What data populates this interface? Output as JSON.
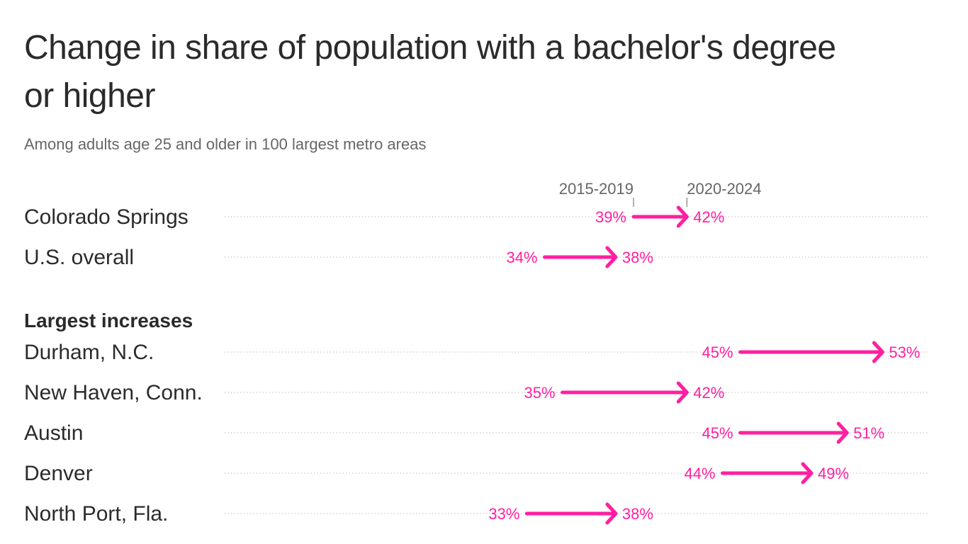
{
  "title": "Change in share of population with a bachelor's degree or higher",
  "subtitle": "Among adults age 25 and older in 100 largest metro areas",
  "colors": {
    "accent": "#ff1fa0",
    "text": "#2b2b2b",
    "muted": "#666666",
    "grid": "#cccccc"
  },
  "chart_data": {
    "type": "arrow-range",
    "legend": {
      "start_label": "2015-2019",
      "end_label": "2020-2024"
    },
    "section_heading": "Largest increases",
    "units": "%",
    "rows": [
      {
        "label": "Colorado Springs",
        "start": 39,
        "end": 42,
        "start_text": "39%",
        "end_text": "42%",
        "section": "top"
      },
      {
        "label": "U.S. overall",
        "start": 34,
        "end": 38,
        "start_text": "34%",
        "end_text": "38%",
        "section": "top"
      },
      {
        "label": "Durham, N.C.",
        "start": 45,
        "end": 53,
        "start_text": "45%",
        "end_text": "53%",
        "section": "largest"
      },
      {
        "label": "New Haven, Conn.",
        "start": 35,
        "end": 42,
        "start_text": "35%",
        "end_text": "42%",
        "section": "largest"
      },
      {
        "label": "Austin",
        "start": 45,
        "end": 51,
        "start_text": "45%",
        "end_text": "51%",
        "section": "largest"
      },
      {
        "label": "Denver",
        "start": 44,
        "end": 49,
        "start_text": "44%",
        "end_text": "49%",
        "section": "largest"
      },
      {
        "label": "North Port, Fla.",
        "start": 33,
        "end": 38,
        "start_text": "33%",
        "end_text": "38%",
        "section": "largest"
      }
    ]
  }
}
